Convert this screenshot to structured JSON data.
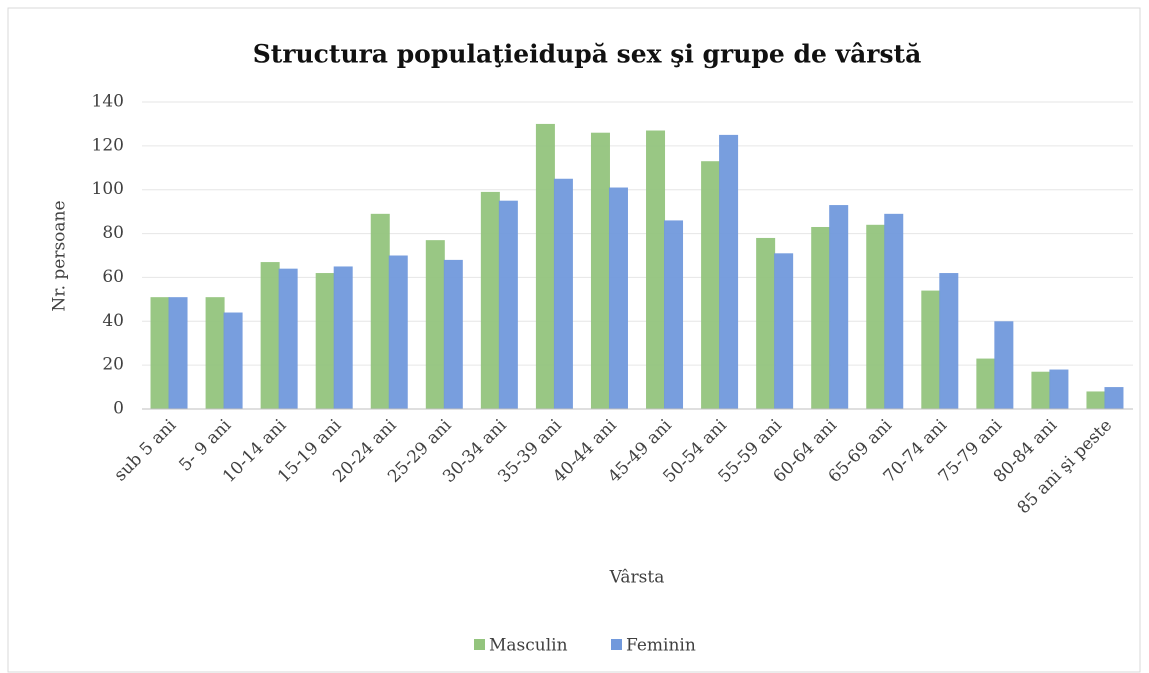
{
  "chart_data": {
    "type": "bar",
    "title": "Structura populaţieidupă sex şi grupe de vârstă",
    "x_label": "Vârsta",
    "y_label": "Nr. persoane",
    "categories": [
      "sub 5 ani",
      "5- 9 ani",
      "10-14 ani",
      "15-19 ani",
      "20-24 ani",
      "25-29 ani",
      "30-34 ani",
      "35-39 ani",
      "40-44 ani",
      "45-49 ani",
      "50-54 ani",
      "55-59 ani",
      "60-64 ani",
      "65-69 ani",
      "70-74 ani",
      "75-79 ani",
      "80-84 ani",
      "85 ani şi peste"
    ],
    "series": [
      {
        "name": "Masculin",
        "color": "#93c47d",
        "values": [
          51,
          51,
          67,
          62,
          89,
          77,
          99,
          130,
          126,
          127,
          113,
          78,
          83,
          84,
          54,
          23,
          17,
          8
        ]
      },
      {
        "name": "Feminin",
        "color": "#7199dc",
        "values": [
          51,
          44,
          64,
          65,
          70,
          68,
          95,
          105,
          101,
          86,
          125,
          71,
          93,
          89,
          62,
          40,
          18,
          10
        ]
      }
    ],
    "ylim": [
      0,
      140
    ],
    "yticks": [
      0,
      20,
      40,
      60,
      80,
      100,
      120,
      140
    ],
    "grid": true,
    "legend": "bottom"
  }
}
